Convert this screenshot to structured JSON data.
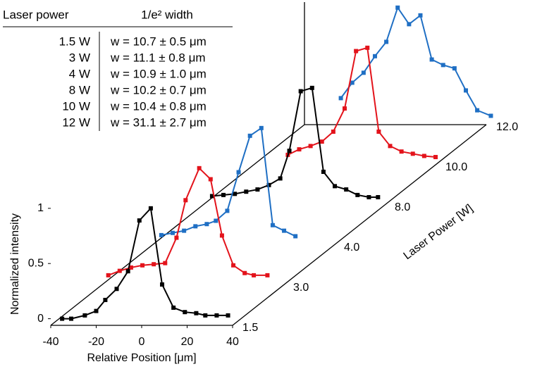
{
  "table": {
    "columns": [
      "Laser power",
      "1/e² width"
    ],
    "rows": [
      [
        "1.5 W",
        "w = 10.7 ± 0.5 μm"
      ],
      [
        "3 W",
        "w = 11.1 ± 0.8 μm"
      ],
      [
        "4 W",
        "w = 10.9 ± 1.0 μm"
      ],
      [
        "8 W",
        "w = 10.2 ± 0.7 μm"
      ],
      [
        "10 W",
        "w = 10.4 ± 0.8 μm"
      ],
      [
        "12 W",
        "w = 31.1 ± 2.7 μm"
      ]
    ]
  },
  "chart_data": {
    "type": "waterfall",
    "x_label": "Relative Position [μm]",
    "y_label": "Normalized intensity",
    "z_label": "Laser Power [W]",
    "xlim": [
      -40,
      40
    ],
    "xticks": [
      -40,
      -20,
      0,
      20,
      40
    ],
    "ylim": [
      -0.06,
      1.05
    ],
    "yticks": [
      0,
      0.5,
      1
    ],
    "series": [
      {
        "name": "1.5",
        "color": "#000000",
        "x": [
          -35,
          -31,
          -25,
          -20,
          -16,
          -11,
          -6,
          -1,
          4,
          9,
          14,
          19,
          24,
          28,
          33,
          38
        ],
        "values": [
          0,
          0,
          0.03,
          0.07,
          0.17,
          0.27,
          0.43,
          0.89,
          1,
          0.31,
          0.1,
          0.06,
          0.05,
          0.03,
          0.03,
          0.03
        ]
      },
      {
        "name": "3.0",
        "color": "#e3131b",
        "x": [
          -37,
          -32,
          -27,
          -22,
          -17,
          -12,
          -7,
          -3,
          3,
          8,
          13,
          18,
          23,
          27,
          33
        ],
        "values": [
          0.03,
          0.07,
          0.1,
          0.12,
          0.13,
          0.14,
          0.37,
          0.71,
          1,
          0.9,
          0.39,
          0.12,
          0.05,
          0.03,
          0.03
        ]
      },
      {
        "name": "4.0",
        "color": "#1f6fc4",
        "x": [
          -36,
          -31,
          -26,
          -21,
          -16,
          -12,
          -7,
          -2,
          3,
          8,
          13,
          18,
          23
        ],
        "values": [
          0.03,
          0.05,
          0.07,
          0.11,
          0.13,
          0.16,
          0.25,
          0.6,
          0.93,
          1,
          0.12,
          0.07,
          0.02
        ]
      },
      {
        "name": "8.0",
        "color": "#000000",
        "x": [
          -36,
          -31,
          -26,
          -21,
          -16,
          -11,
          -6,
          -2,
          3,
          8,
          13,
          18,
          23,
          28,
          33,
          37
        ],
        "values": [
          0.02,
          0.03,
          0.04,
          0.06,
          0.08,
          0.12,
          0.18,
          0.43,
          0.97,
          1,
          0.24,
          0.11,
          0.08,
          0.03,
          0.01,
          0.01
        ]
      },
      {
        "name": "10.0",
        "color": "#e3131b",
        "x": [
          -25,
          -20,
          -15,
          -10,
          -5,
          0,
          5,
          10,
          15,
          20,
          25,
          30,
          35,
          40
        ],
        "values": [
          0.03,
          0.08,
          0.11,
          0.15,
          0.24,
          0.45,
          0.97,
          1,
          0.24,
          0.11,
          0.06,
          0.04,
          0.02,
          0.01
        ]
      },
      {
        "name": "12.0",
        "color": "#1f6fc4",
        "x": [
          -24,
          -19,
          -14,
          -9,
          -4,
          1,
          6,
          11,
          16,
          21,
          26,
          31,
          36,
          42
        ],
        "values": [
          0.18,
          0.32,
          0.41,
          0.56,
          0.69,
          1,
          0.85,
          0.93,
          0.53,
          0.48,
          0.45,
          0.25,
          0.07,
          0.02
        ]
      }
    ]
  }
}
